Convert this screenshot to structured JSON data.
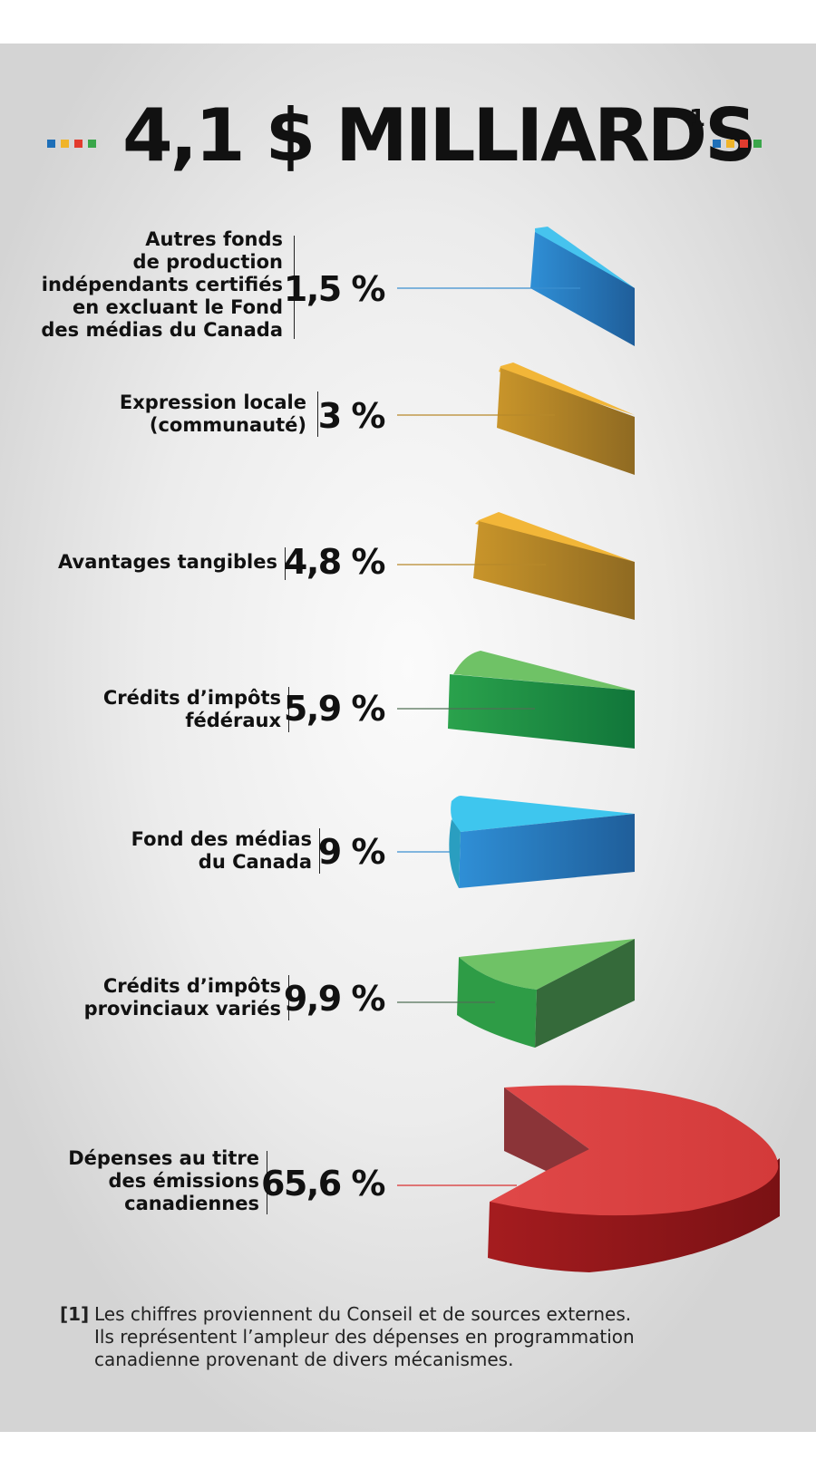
{
  "title": {
    "text": "4,1 $ MILLIARDS",
    "footnote_ref": "1",
    "dot_colors": [
      "#1e6fb8",
      "#f0b429",
      "#e23b2e",
      "#3aa64a"
    ]
  },
  "chart_data": {
    "type": "pie",
    "title": "4,1 $ MILLIARDS",
    "slices": [
      {
        "label_lines": [
          "Autres fonds",
          "de production",
          "indépendants certifiés",
          "en excluant le Fond",
          "des médias du Canada"
        ],
        "value": 1.5,
        "value_text": "1,5 %",
        "color": "#2f8fd6"
      },
      {
        "label_lines": [
          "Expression locale",
          "(communauté)"
        ],
        "value": 3,
        "value_text": "3 %",
        "color": "#c9952a"
      },
      {
        "label_lines": [
          "Avantages tangibles"
        ],
        "value": 4.8,
        "value_text": "4,8 %",
        "color": "#c9952a"
      },
      {
        "label_lines": [
          "Crédits d’impôts",
          "fédéraux"
        ],
        "value": 5.9,
        "value_text": "5,9 %",
        "color": "#2a9a48"
      },
      {
        "label_lines": [
          "Fond des médias",
          "du Canada"
        ],
        "value": 9,
        "value_text": "9 %",
        "color": "#2a8fd6"
      },
      {
        "label_lines": [
          "Crédits d’impôts",
          "provinciaux variés"
        ],
        "value": 9.9,
        "value_text": "9,9 %",
        "color": "#2a9a48"
      },
      {
        "label_lines": [
          "Dépenses au titre",
          "des émissions",
          "canadiennes"
        ],
        "value": 65.6,
        "value_text": "65,6 %",
        "color": "#e04242"
      }
    ]
  },
  "footnote": {
    "ref": "[1]",
    "lines": [
      "Les chiffres proviennent du Conseil et de sources externes.",
      "Ils représentent l’ampleur des dépenses en programmation",
      "canadienne provenant de divers mécanismes."
    ]
  }
}
